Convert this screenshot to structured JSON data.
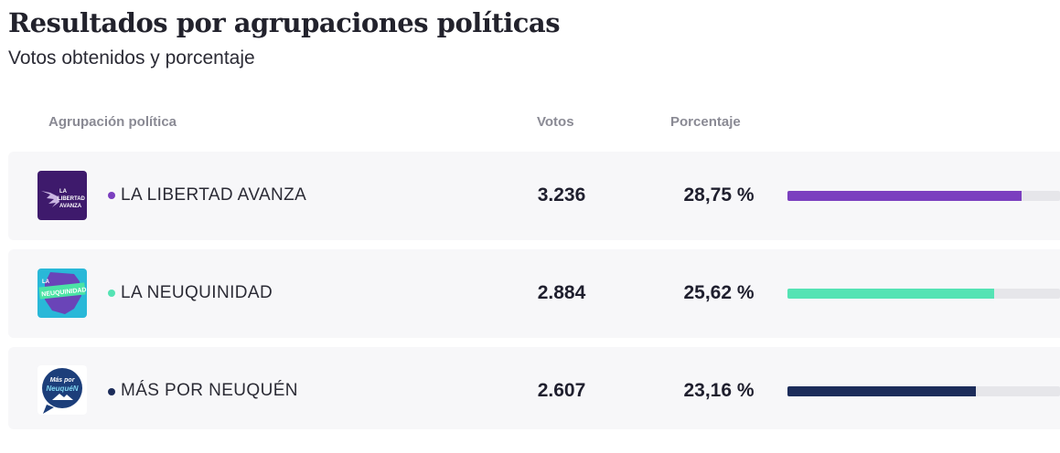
{
  "header": {
    "title": "Resultados por agrupaciones políticas",
    "subtitle": "Votos obtenidos y porcentaje"
  },
  "columns": {
    "party": "Agrupación política",
    "votes": "Votos",
    "percentage": "Porcentaje"
  },
  "rows": [
    {
      "name": "LA LIBERTAD AVANZA",
      "votes": "3.236",
      "percentage": "28,75 %",
      "share_of_bar": 0.86,
      "color": "#7b3fbf",
      "logo": {
        "icon": "la-libertad-avanza-logo",
        "text": [
          "LA",
          "LIBERTAD",
          "AVANZA"
        ]
      }
    },
    {
      "name": "LA NEUQUINIDAD",
      "votes": "2.884",
      "percentage": "25,62 %",
      "share_of_bar": 0.76,
      "color": "#55e3b4",
      "logo": {
        "icon": "la-neuquinidad-logo",
        "text": [
          "LA",
          "NEUQUINIDAD"
        ]
      }
    },
    {
      "name": "MÁS POR NEUQUÉN",
      "votes": "2.607",
      "percentage": "23,16 %",
      "share_of_bar": 0.69,
      "color": "#1c2c5a",
      "logo": {
        "icon": "mas-por-neuquen-logo",
        "text": [
          "Más por",
          "NeuquéN"
        ]
      }
    }
  ]
}
